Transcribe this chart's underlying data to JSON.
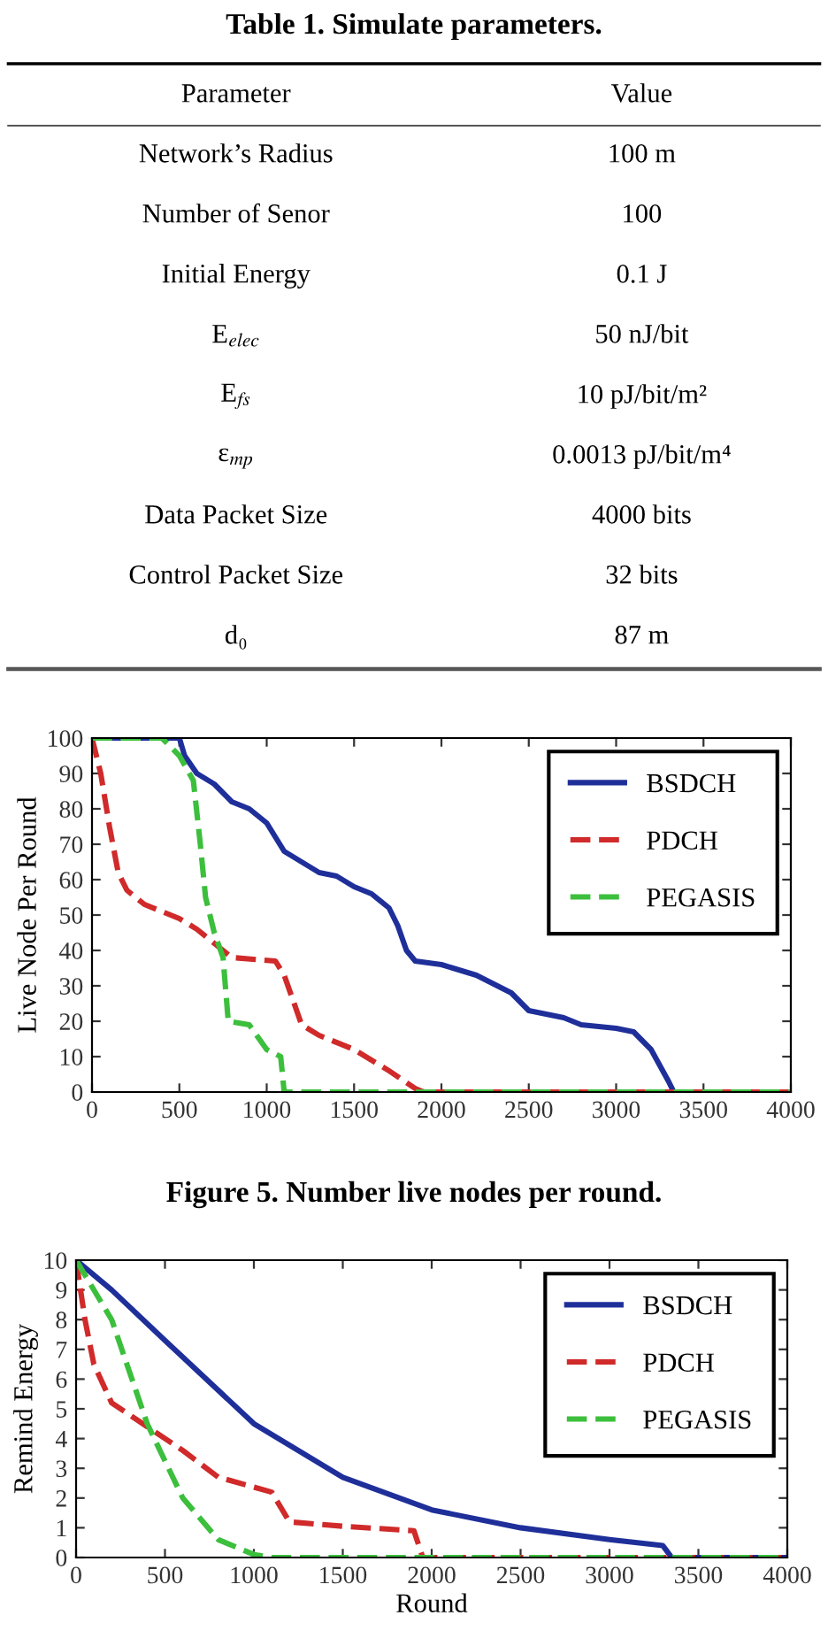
{
  "chart_data": [
    {
      "type": "other",
      "title": "Table 1. Simulate parameters.",
      "annotations": [
        "Parameter",
        "Value",
        "Network’s Radius",
        "100 m",
        "Number of Senor",
        "100",
        "Initial Energy",
        "0.1 J",
        "E$_{elec}$",
        "50 nJ/bit",
        "E$_{fs}$",
        "10 pJ/bit/m²",
        "ε$_{mp}$",
        "0.0013 pJ/bit/m⁴",
        "Data Packet Size",
        "4000 bits",
        "Control Packet Size",
        "32 bits",
        "d₀",
        "87 m"
      ]
    },
    {
      "type": "line",
      "ylabel": "Live Node Per Round",
      "annotations": [
        "Figure 5. Number live nodes per round."
      ],
      "xlim": [
        0,
        4000
      ],
      "xticks": [
        0,
        500,
        1000,
        1500,
        2000,
        2500,
        3000,
        3500,
        4000
      ],
      "ylim": [
        0,
        100
      ],
      "yticks": [
        0,
        10,
        20,
        30,
        40,
        50,
        60,
        70,
        80,
        90,
        100
      ],
      "legend": "top right",
      "grid": false,
      "series": [
        {
          "name": "BSDCH",
          "color": "#1f2f9a",
          "line_style": "solid",
          "x": [
            0,
            500,
            530,
            600,
            700,
            800,
            900,
            1000,
            1100,
            1200,
            1300,
            1400,
            1500,
            1600,
            1700,
            1750,
            1800,
            1850,
            2000,
            2200,
            2400,
            2500,
            2700,
            2800,
            3000,
            3100,
            3200,
            3300,
            3330,
            4000
          ],
          "values": [
            100,
            100,
            95,
            90,
            87,
            82,
            80,
            76,
            68,
            65,
            62,
            61,
            58,
            56,
            52,
            47,
            40,
            37,
            36,
            33,
            28,
            23,
            21,
            19,
            18,
            17,
            12,
            3,
            0,
            0
          ]
        },
        {
          "name": "PDCH",
          "color": "#d02a2a",
          "line_style": "dashed",
          "x": [
            0,
            50,
            100,
            150,
            200,
            300,
            500,
            600,
            700,
            800,
            1050,
            1100,
            1200,
            1300,
            1500,
            1700,
            1850,
            1900,
            4000
          ],
          "values": [
            100,
            90,
            75,
            62,
            57,
            53,
            49,
            46,
            42,
            38,
            37,
            33,
            19,
            16,
            12,
            6,
            1,
            0,
            0
          ]
        },
        {
          "name": "PEGASIS",
          "color": "#3cbf3c",
          "line_style": "dashed",
          "x": [
            0,
            400,
            500,
            580,
            620,
            650,
            700,
            750,
            780,
            900,
            1000,
            1080,
            1100,
            4000
          ],
          "values": [
            100,
            100,
            95,
            88,
            70,
            55,
            45,
            38,
            20,
            19,
            12,
            10,
            0,
            0
          ]
        }
      ]
    },
    {
      "type": "line",
      "ylabel": "Remind Energy",
      "xlabel": "Round",
      "xlim": [
        0,
        4000
      ],
      "xticks": [
        0,
        500,
        1000,
        1500,
        2000,
        2500,
        3000,
        3500,
        4000
      ],
      "ylim": [
        0,
        10
      ],
      "yticks": [
        0,
        1,
        2,
        3,
        4,
        5,
        6,
        7,
        8,
        9,
        10
      ],
      "legend": "top right",
      "grid": false,
      "series": [
        {
          "name": "BSDCH",
          "color": "#1f2f9a",
          "line_style": "solid",
          "x": [
            0,
            200,
            500,
            1000,
            1500,
            2000,
            2500,
            3000,
            3300,
            3350,
            4000
          ],
          "values": [
            10,
            9,
            7.3,
            4.5,
            2.7,
            1.6,
            1.0,
            0.6,
            0.4,
            0,
            0
          ]
        },
        {
          "name": "PDCH",
          "color": "#d02a2a",
          "line_style": "dashed",
          "x": [
            0,
            50,
            100,
            200,
            400,
            600,
            800,
            1100,
            1200,
            1500,
            1900,
            1950,
            4000
          ],
          "values": [
            10,
            8,
            6.5,
            5.2,
            4.4,
            3.6,
            2.7,
            2.2,
            1.2,
            1.05,
            0.9,
            0,
            0
          ]
        },
        {
          "name": "PEGASIS",
          "color": "#3cbf3c",
          "line_style": "dashed",
          "x": [
            0,
            200,
            400,
            600,
            800,
            1000,
            1100,
            4000
          ],
          "values": [
            10,
            8,
            4.5,
            2,
            0.6,
            0.1,
            0,
            0
          ]
        }
      ]
    }
  ]
}
